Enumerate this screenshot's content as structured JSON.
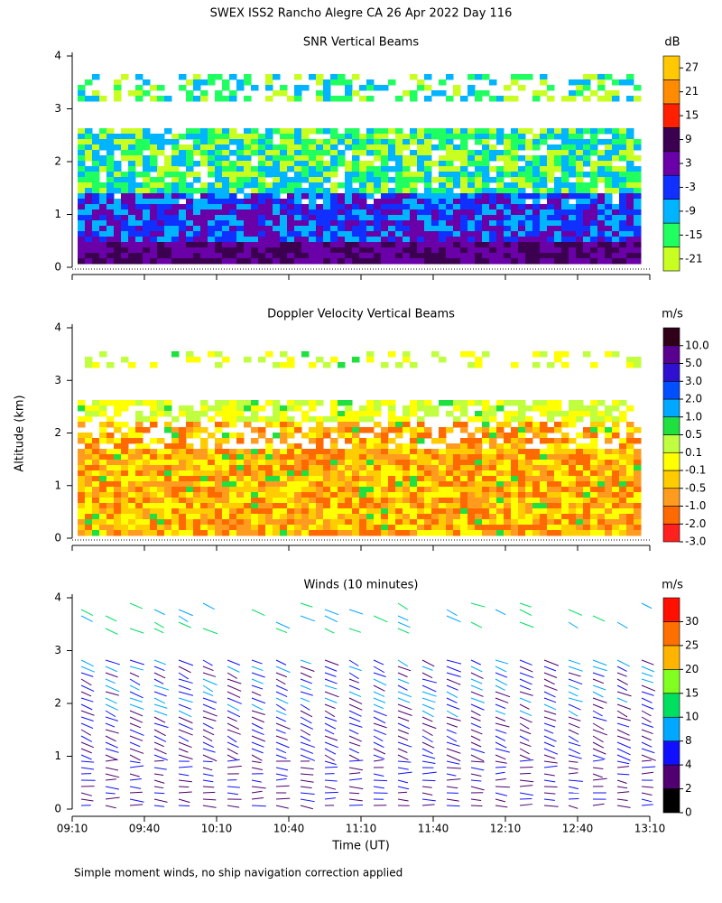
{
  "title": "SWEX ISS2 Rancho Alegre CA  26 Apr 2022 Day 116",
  "ylabel": "Altitude (km)",
  "xlabel": "Time (UT)",
  "footnote": "Simple moment winds, no ship navigation correction applied",
  "chart_data": [
    {
      "type": "heatmap",
      "title": "SNR Vertical Beams",
      "ylim": [
        0,
        4
      ],
      "yticks": [
        0,
        1,
        2,
        3,
        4
      ],
      "colorbar": {
        "unit": "dB",
        "levels": [
          -21,
          -15,
          -9,
          -3,
          3,
          9,
          15,
          21,
          27
        ],
        "colors": [
          "#c8ff20",
          "#20ff60",
          "#00b4ff",
          "#1030ff",
          "#6a00a8",
          "#3c0050",
          "#ff2000",
          "#ff8c00",
          "#ffc800"
        ]
      }
    },
    {
      "type": "heatmap",
      "title": "Doppler Velocity Vertical Beams",
      "ylim": [
        0,
        4
      ],
      "yticks": [
        0,
        1,
        2,
        3,
        4
      ],
      "colorbar": {
        "unit": "m/s",
        "levels": [
          {
            "value": -3,
            "label": "-3.0"
          },
          {
            "value": -2,
            "label": "-2.0"
          },
          {
            "value": -1,
            "label": "-1.0"
          },
          -0.5,
          -0.1,
          0.1,
          0.5,
          {
            "value": 1,
            "label": "1.0"
          },
          {
            "value": 2,
            "label": "2.0"
          },
          {
            "value": 3,
            "label": "3.0"
          },
          {
            "value": 5,
            "label": "5.0"
          },
          {
            "value": 10,
            "label": "10.0"
          }
        ],
        "colors": [
          "#ff2020",
          "#ff6a00",
          "#ff9c20",
          "#ffcc00",
          "#ffff00",
          "#c0ff40",
          "#20e040",
          "#00a8ff",
          "#0050ff",
          "#3010d0",
          "#5a0090",
          "#300018"
        ]
      }
    },
    {
      "type": "winds",
      "title": "Winds (10 minutes)",
      "ylim": [
        0,
        4
      ],
      "yticks": [
        0,
        1,
        2,
        3,
        4
      ],
      "xlim": [
        550,
        790
      ],
      "xticks": [
        {
          "value": 550,
          "label": "09:10"
        },
        {
          "value": 580,
          "label": "09:40"
        },
        {
          "value": 610,
          "label": "10:10"
        },
        {
          "value": 640,
          "label": "10:40"
        },
        {
          "value": 670,
          "label": "11:10"
        },
        {
          "value": 700,
          "label": "11:40"
        },
        {
          "value": 730,
          "label": "12:10"
        },
        {
          "value": 760,
          "label": "12:40"
        },
        {
          "value": 790,
          "label": "13:10"
        }
      ],
      "colorbar": {
        "unit": "m/s",
        "levels": [
          0,
          2,
          4,
          8,
          10,
          15,
          20,
          25,
          30
        ],
        "colors": [
          "#000000",
          "#500070",
          "#1010ff",
          "#00a8ff",
          "#00e060",
          "#80ff20",
          "#ffb400",
          "#ff7000",
          "#ff1000"
        ]
      }
    }
  ]
}
